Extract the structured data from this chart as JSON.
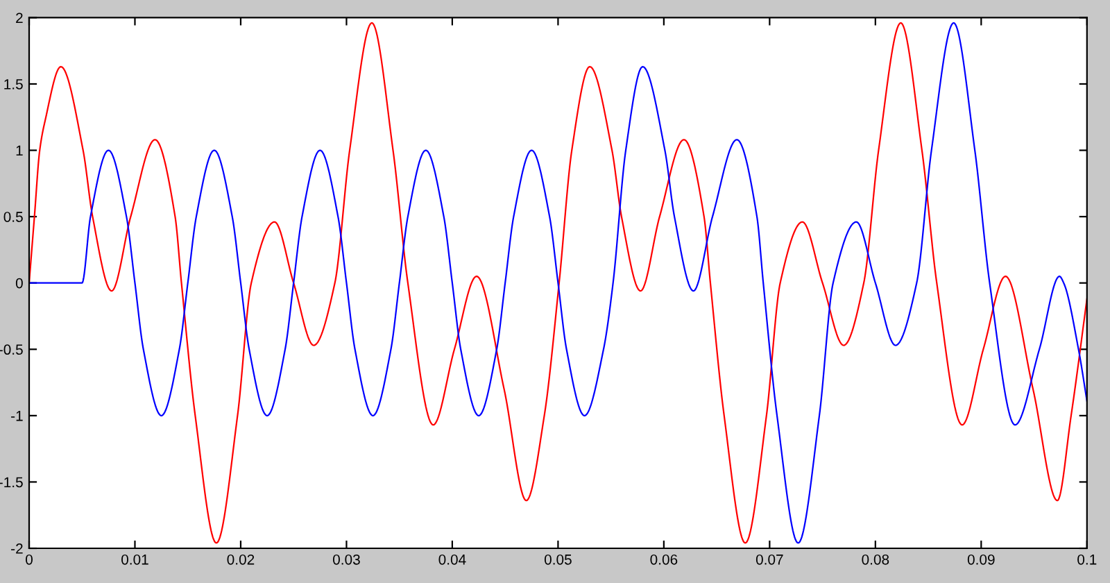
{
  "chart_data": {
    "type": "line",
    "xlim": [
      0,
      0.1
    ],
    "ylim": [
      -2,
      2
    ],
    "xticks": [
      0,
      0.01,
      0.02,
      0.03,
      0.04,
      0.05,
      0.06,
      0.07,
      0.08,
      0.09,
      0.1
    ],
    "yticks": [
      -2,
      -1.5,
      -1,
      -0.5,
      0,
      0.5,
      1,
      1.5,
      2
    ],
    "series": [
      {
        "color": "#ff0000",
        "x": [
          0,
          0.0005,
          0.001,
          0.0015,
          0.003,
          0.0051,
          0.006,
          0.0078,
          0.0096,
          0.0119,
          0.0138,
          0.0144,
          0.0157,
          0.0177,
          0.0197,
          0.021,
          0.0232,
          0.025,
          0.0269,
          0.0289,
          0.0303,
          0.0324,
          0.0344,
          0.0358,
          0.0382,
          0.0402,
          0.0423,
          0.0449,
          0.047,
          0.0487,
          0.0501,
          0.0513,
          0.053,
          0.0551,
          0.056,
          0.0578,
          0.0596,
          0.0619,
          0.0638,
          0.0644,
          0.0657,
          0.0677,
          0.0697,
          0.071,
          0.0731,
          0.075,
          0.077,
          0.0789,
          0.0803,
          0.0824,
          0.0844,
          0.0858,
          0.0882,
          0.0902,
          0.0923,
          0.0949,
          0.0972,
          0.0985,
          0.1
        ],
        "values": [
          0,
          0.5,
          1,
          1.22,
          1.63,
          1,
          0.5,
          -0.06,
          0.5,
          1.08,
          0.5,
          0,
          -1,
          -1.96,
          -1,
          0,
          0.46,
          0,
          -0.47,
          0,
          1,
          1.96,
          1,
          0,
          -1.07,
          -0.5,
          0.05,
          -0.8,
          -1.64,
          -1,
          0,
          1,
          1.63,
          1,
          0.5,
          -0.06,
          0.5,
          1.08,
          0.5,
          0,
          -1,
          -1.96,
          -1,
          0,
          0.46,
          0,
          -0.47,
          0,
          1,
          1.96,
          1,
          0,
          -1.07,
          -0.5,
          0.05,
          -0.8,
          -1.64,
          -1,
          -0.12
        ]
      },
      {
        "color": "#0000ff",
        "x": [
          0,
          0.005,
          0.0058,
          0.0075,
          0.0092,
          0.01,
          0.0108,
          0.0125,
          0.0142,
          0.015,
          0.0158,
          0.0175,
          0.0192,
          0.02,
          0.0208,
          0.0225,
          0.0242,
          0.025,
          0.0258,
          0.0275,
          0.0292,
          0.03,
          0.0308,
          0.0325,
          0.0342,
          0.035,
          0.0358,
          0.0375,
          0.0392,
          0.04,
          0.0408,
          0.0425,
          0.0442,
          0.045,
          0.0458,
          0.0475,
          0.0492,
          0.05,
          0.0508,
          0.0525,
          0.0543,
          0.0552,
          0.0564,
          0.058,
          0.0601,
          0.061,
          0.0628,
          0.0646,
          0.0669,
          0.0688,
          0.0694,
          0.0707,
          0.0727,
          0.0747,
          0.076,
          0.0782,
          0.08,
          0.0819,
          0.0839,
          0.0853,
          0.0874,
          0.0894,
          0.0908,
          0.0932,
          0.0955,
          0.0974,
          0.0978,
          0.0992,
          0.1
        ],
        "values": [
          0,
          0,
          0.5,
          1,
          0.5,
          0,
          -0.5,
          -1,
          -0.5,
          0,
          0.5,
          1,
          0.5,
          0,
          -0.5,
          -1,
          -0.5,
          0,
          0.5,
          1,
          0.5,
          0,
          -0.5,
          -1,
          -0.5,
          0,
          0.5,
          1,
          0.5,
          0,
          -0.5,
          -1,
          -0.5,
          0,
          0.5,
          1,
          0.5,
          0,
          -0.5,
          -1,
          -0.5,
          0,
          1,
          1.63,
          1,
          0.5,
          -0.06,
          0.5,
          1.08,
          0.5,
          0,
          -1,
          -1.96,
          -1,
          0,
          0.46,
          0,
          -0.47,
          0,
          1,
          1.96,
          1,
          0,
          -1.07,
          -0.5,
          0.05,
          0,
          -0.5,
          -0.89
        ]
      }
    ]
  }
}
